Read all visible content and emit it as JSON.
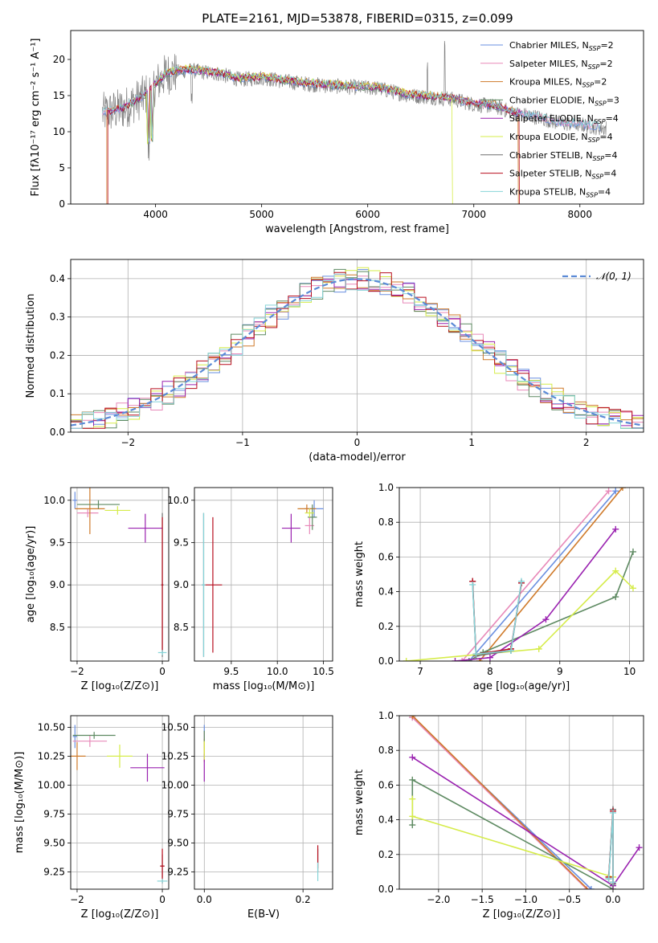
{
  "figure_title": "PLATE=2161, MJD=53878, FIBERID=0315, z=0.099",
  "series_styles": [
    {
      "name": "Chabrier MILES",
      "color": "#6a8fe0"
    },
    {
      "name": "Salpeter MILES",
      "color": "#e889b9"
    },
    {
      "name": "Kroupa MILES",
      "color": "#cf7a2a"
    },
    {
      "name": "Chabrier ELODIE",
      "color": "#5e8a62"
    },
    {
      "name": "Salpeter ELODIE",
      "color": "#9a22b0"
    },
    {
      "name": "Kroupa ELODIE",
      "color": "#d6ec4a"
    },
    {
      "name": "Chabrier STELIB",
      "color": "#6e6e6e"
    },
    {
      "name": "Salpeter STELIB",
      "color": "#b80f1f"
    },
    {
      "name": "Kroupa STELIB",
      "color": "#86d4d8"
    }
  ],
  "legend_spectrum": [
    {
      "base": "Chabrier MILES, N",
      "sub": "SSP",
      "tail": "=2"
    },
    {
      "base": "Salpeter MILES, N",
      "sub": "SSP",
      "tail": "=2"
    },
    {
      "base": "Kroupa MILES, N",
      "sub": "SSP",
      "tail": "=2"
    },
    {
      "base": "Chabrier ELODIE, N",
      "sub": "SSP",
      "tail": "=3"
    },
    {
      "base": "Salpeter ELODIE, N",
      "sub": "SSP",
      "tail": "=4"
    },
    {
      "base": "Kroupa ELODIE, N",
      "sub": "SSP",
      "tail": "=4"
    },
    {
      "base": "Chabrier STELIB, N",
      "sub": "SSP",
      "tail": "=4"
    },
    {
      "base": "Salpeter STELIB, N",
      "sub": "SSP",
      "tail": "=4"
    },
    {
      "base": "Kroupa STELIB, N",
      "sub": "SSP",
      "tail": "=4"
    }
  ],
  "legend_normal": "𝒩(0, 1)",
  "chart_data": [
    {
      "type": "line",
      "id": "spectrum",
      "xlabel": "wavelength [Angstrom, rest frame]",
      "ylabel": "Flux [fλ10⁻¹⁷ erg cm⁻² s⁻¹ A⁻¹]",
      "xlim": [
        3200,
        8600
      ],
      "ylim": [
        0,
        24
      ],
      "xticks": [
        4000,
        5000,
        6000,
        7000,
        8000
      ],
      "yticks": [
        0,
        5,
        10,
        15,
        20
      ],
      "grid": false,
      "legend": "top-right",
      "continuum": {
        "x": [
          3500,
          3700,
          3900,
          4100,
          4300,
          4600,
          4800,
          5000,
          5200,
          5500,
          5800,
          6100,
          6400,
          6600,
          6800,
          7000,
          7200,
          7400,
          7600,
          7800,
          8000,
          8200
        ],
        "y": [
          12.5,
          13.2,
          15.0,
          18.0,
          18.5,
          18.0,
          17.2,
          17.5,
          17.0,
          16.5,
          16.2,
          16.0,
          15.0,
          14.8,
          14.5,
          13.8,
          13.5,
          12.5,
          12.0,
          11.2,
          11.0,
          10.5
        ]
      }
    },
    {
      "type": "area",
      "id": "residual-histogram",
      "xlabel": "(data-model)/error",
      "ylabel": "Normed distribution",
      "xlim": [
        -2.5,
        2.5
      ],
      "ylim": [
        0,
        0.45
      ],
      "xticks": [
        -2,
        -1,
        0,
        1,
        2
      ],
      "yticks": [
        0.0,
        0.1,
        0.2,
        0.3,
        0.4
      ],
      "grid": true,
      "legend": "top-right",
      "normal": {
        "mu": 0,
        "sigma": 1
      }
    },
    {
      "type": "scatter",
      "id": "age-vs-Z",
      "xlabel": "Z [log₁₀(Z/Z⊙)]",
      "ylabel": "age  [log₁₀(age/yr)]",
      "xlim": [
        -2.15,
        0.15
      ],
      "ylim": [
        8.1,
        10.15
      ],
      "xticks": [
        -2,
        0
      ],
      "yticks": [
        8.5,
        9.0,
        9.5,
        10.0
      ],
      "grid": true,
      "points": [
        {
          "s": 0,
          "x": -2.05,
          "y": 10.0,
          "xerr": 0.05,
          "yerr": 0.1
        },
        {
          "s": 1,
          "x": -1.75,
          "y": 9.85,
          "xerr": 0.25,
          "yerr": 0.05
        },
        {
          "s": 2,
          "x": -1.7,
          "y": 9.9,
          "xerr": 0.35,
          "yerr": 0.3
        },
        {
          "s": 3,
          "x": -1.5,
          "y": 9.95,
          "xerr": 0.5,
          "yerr": 0.05
        },
        {
          "s": 4,
          "x": -0.4,
          "y": 9.67,
          "xerr": 0.4,
          "yerr": 0.17
        },
        {
          "s": 5,
          "x": -1.05,
          "y": 9.88,
          "xerr": 0.3,
          "yerr": 0.05
        },
        {
          "s": 6,
          "x": 0.0,
          "y": 9.0,
          "xerr": 0.03,
          "yerr": 0.85
        },
        {
          "s": 7,
          "x": 0.0,
          "y": 9.0,
          "xerr": 0.02,
          "yerr": 0.8
        },
        {
          "s": 8,
          "x": 0.0,
          "y": 8.2,
          "xerr": 0.1,
          "yerr": 0.03
        }
      ]
    },
    {
      "type": "scatter",
      "id": "age-vs-mass",
      "xlabel": "mass [log₁₀(M/M⊙)]",
      "ylabel": "",
      "xlim": [
        9.1,
        10.6
      ],
      "ylim": [
        8.1,
        10.15
      ],
      "xticks": [
        9.5,
        10.0,
        10.5
      ],
      "yticks": [
        8.5,
        9.0,
        9.5,
        10.0
      ],
      "grid": true,
      "points": [
        {
          "s": 0,
          "x": 10.4,
          "y": 9.9,
          "xerr": 0.1,
          "yerr": 0.1
        },
        {
          "s": 1,
          "x": 10.35,
          "y": 9.7,
          "xerr": 0.05,
          "yerr": 0.1
        },
        {
          "s": 2,
          "x": 10.32,
          "y": 9.9,
          "xerr": 0.1,
          "yerr": 0.05
        },
        {
          "s": 3,
          "x": 10.38,
          "y": 9.8,
          "xerr": 0.05,
          "yerr": 0.15
        },
        {
          "s": 4,
          "x": 10.15,
          "y": 9.67,
          "xerr": 0.1,
          "yerr": 0.17
        },
        {
          "s": 5,
          "x": 10.35,
          "y": 9.85,
          "xerr": 0.05,
          "yerr": 0.05
        },
        {
          "s": 6,
          "x": 9.2,
          "y": 9.0,
          "xerr": 0.02,
          "yerr": 0.85
        },
        {
          "s": 7,
          "x": 9.3,
          "y": 9.0,
          "xerr": 0.1,
          "yerr": 0.8
        },
        {
          "s": 8,
          "x": 9.2,
          "y": 9.0,
          "xerr": 0.02,
          "yerr": 0.85
        }
      ]
    },
    {
      "type": "line",
      "id": "weight-vs-age",
      "xlabel": "age  [log₁₀(age/yr)]",
      "ylabel": "mass weight",
      "xlim": [
        6.7,
        10.2
      ],
      "ylim": [
        0,
        1
      ],
      "xticks": [
        7,
        8,
        9,
        10
      ],
      "yticks": [
        0.0,
        0.2,
        0.4,
        0.6,
        0.8,
        1.0
      ],
      "grid": true,
      "series": [
        {
          "s": 0,
          "x": [
            7.7,
            9.8
          ],
          "y": [
            0.0,
            0.98
          ]
        },
        {
          "s": 1,
          "x": [
            7.6,
            9.7
          ],
          "y": [
            0.0,
            0.98
          ]
        },
        {
          "s": 2,
          "x": [
            7.85,
            9.9
          ],
          "y": [
            0.0,
            1.0
          ]
        },
        {
          "s": 3,
          "x": [
            7.7,
            7.9,
            9.8,
            10.05
          ],
          "y": [
            0.0,
            0.05,
            0.37,
            0.63
          ]
        },
        {
          "s": 4,
          "x": [
            7.5,
            8.0,
            8.8,
            9.8
          ],
          "y": [
            0.0,
            0.02,
            0.24,
            0.76
          ]
        },
        {
          "s": 5,
          "x": [
            6.8,
            8.7,
            9.8,
            10.05
          ],
          "y": [
            0.0,
            0.07,
            0.52,
            0.42
          ]
        },
        {
          "s": 6,
          "x": [
            7.75,
            7.8,
            8.3,
            8.45
          ],
          "y": [
            0.46,
            0.03,
            0.06,
            0.45
          ]
        },
        {
          "s": 7,
          "x": [
            7.75,
            7.8,
            8.3,
            8.45
          ],
          "y": [
            0.46,
            0.04,
            0.07,
            0.45
          ]
        },
        {
          "s": 8,
          "x": [
            7.75,
            7.8,
            8.3,
            8.45
          ],
          "y": [
            0.44,
            0.04,
            0.06,
            0.46
          ]
        }
      ]
    },
    {
      "type": "scatter",
      "id": "mass-vs-Z",
      "xlabel": "Z [log₁₀(Z/Z⊙)]",
      "ylabel": "mass [log₁₀(M/M⊙)]",
      "xlim": [
        -2.15,
        0.15
      ],
      "ylim": [
        9.1,
        10.6
      ],
      "xticks": [
        -2,
        0
      ],
      "yticks": [
        9.25,
        9.5,
        9.75,
        10.0,
        10.25,
        10.5
      ],
      "grid": true,
      "points": [
        {
          "s": 0,
          "x": -2.05,
          "y": 10.42,
          "xerr": 0.05,
          "yerr": 0.1
        },
        {
          "s": 1,
          "x": -1.7,
          "y": 10.38,
          "xerr": 0.4,
          "yerr": 0.05
        },
        {
          "s": 2,
          "x": -2.0,
          "y": 10.25,
          "xerr": 0.2,
          "yerr": 0.12
        },
        {
          "s": 3,
          "x": -1.6,
          "y": 10.43,
          "xerr": 0.5,
          "yerr": 0.03
        },
        {
          "s": 4,
          "x": -0.35,
          "y": 10.15,
          "xerr": 0.4,
          "yerr": 0.12
        },
        {
          "s": 5,
          "x": -1.0,
          "y": 10.25,
          "xerr": 0.3,
          "yerr": 0.1
        },
        {
          "s": 6,
          "x": 0.0,
          "y": 9.3,
          "xerr": 0.05,
          "yerr": 0.1
        },
        {
          "s": 7,
          "x": 0.0,
          "y": 9.3,
          "xerr": 0.05,
          "yerr": 0.15
        },
        {
          "s": 8,
          "x": 0.0,
          "y": 9.17,
          "xerr": 0.12,
          "yerr": 0.02
        }
      ]
    },
    {
      "type": "scatter",
      "id": "mass-vs-EBV",
      "xlabel": "E(B-V)",
      "ylabel": "",
      "xlim": [
        -0.02,
        0.26
      ],
      "ylim": [
        9.1,
        10.6
      ],
      "xticks": [
        0.0,
        0.2
      ],
      "yticks": [
        9.25,
        9.5,
        9.75,
        10.0,
        10.25,
        10.5
      ],
      "grid": true,
      "points": [
        {
          "s": 0,
          "x": 0.0,
          "y": 10.42,
          "xerr": 0.0,
          "yerr": 0.1
        },
        {
          "s": 1,
          "x": 0.0,
          "y": 10.38,
          "xerr": 0.0,
          "yerr": 0.08
        },
        {
          "s": 2,
          "x": 0.0,
          "y": 10.3,
          "xerr": 0.0,
          "yerr": 0.1
        },
        {
          "s": 3,
          "x": 0.0,
          "y": 10.42,
          "xerr": 0.0,
          "yerr": 0.05
        },
        {
          "s": 4,
          "x": 0.0,
          "y": 10.15,
          "xerr": 0.0,
          "yerr": 0.12
        },
        {
          "s": 5,
          "x": 0.0,
          "y": 10.3,
          "xerr": 0.0,
          "yerr": 0.08
        },
        {
          "s": 6,
          "x": 0.23,
          "y": 9.35,
          "xerr": 0.0,
          "yerr": 0.1
        },
        {
          "s": 7,
          "x": 0.23,
          "y": 9.38,
          "xerr": 0.0,
          "yerr": 0.1
        },
        {
          "s": 8,
          "x": 0.23,
          "y": 9.25,
          "xerr": 0.0,
          "yerr": 0.08
        }
      ]
    },
    {
      "type": "line",
      "id": "weight-vs-Z",
      "xlabel": "Z [log₁₀(Z/Z⊙)]",
      "ylabel": "mass weight",
      "xlim": [
        -2.45,
        0.35
      ],
      "ylim": [
        0,
        1
      ],
      "xticks": [
        -2.0,
        -1.5,
        -1.0,
        -0.5,
        0.0
      ],
      "yticks": [
        0.0,
        0.2,
        0.4,
        0.6,
        0.8,
        1.0
      ],
      "grid": true,
      "series": [
        {
          "s": 0,
          "x": [
            -2.3,
            -0.25
          ],
          "y": [
            0.99,
            0.0
          ]
        },
        {
          "s": 1,
          "x": [
            -2.3,
            -0.3
          ],
          "y": [
            0.99,
            0.0
          ]
        },
        {
          "s": 2,
          "x": [
            -2.3,
            -0.25
          ],
          "y": [
            1.0,
            -0.02
          ]
        },
        {
          "s": 3,
          "x": [
            -2.3,
            -2.3,
            0.0
          ],
          "y": [
            0.37,
            0.63,
            0.0
          ]
        },
        {
          "s": 4,
          "x": [
            -2.3,
            0.0,
            0.3
          ],
          "y": [
            0.76,
            0.02,
            0.24
          ]
        },
        {
          "s": 5,
          "x": [
            -2.3,
            -2.3,
            0.0
          ],
          "y": [
            0.52,
            0.42,
            0.07
          ]
        },
        {
          "s": 6,
          "x": [
            -0.05,
            0.0,
            0.0
          ],
          "y": [
            0.06,
            0.46,
            0.03
          ]
        },
        {
          "s": 7,
          "x": [
            -0.05,
            0.0,
            0.0
          ],
          "y": [
            0.07,
            0.45,
            0.04
          ]
        },
        {
          "s": 8,
          "x": [
            -0.05,
            0.0,
            0.0
          ],
          "y": [
            0.06,
            0.44,
            0.04
          ]
        }
      ]
    }
  ]
}
